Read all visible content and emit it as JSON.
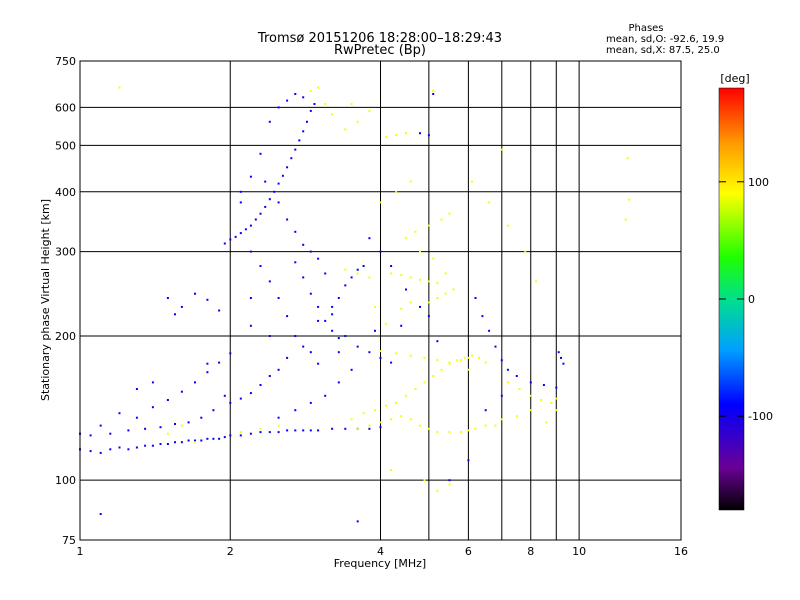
{
  "chart_data": {
    "type": "scatter",
    "title": "Tromsø 20151206 18:28:00–18:29:43",
    "subtitle": "RwPretec (Bp)",
    "xlabel": "Frequency [MHz]",
    "ylabel": "Stationary phase Virtual Height [km]",
    "x_scale": "log",
    "y_scale": "log",
    "xlim": [
      1,
      16
    ],
    "ylim": [
      75,
      750
    ],
    "x_ticks": [
      1,
      2,
      4,
      6,
      8,
      10,
      16
    ],
    "x_tick_labels": [
      "1",
      "2",
      "4",
      "6",
      "8",
      "10",
      "16"
    ],
    "x_minor_ticks": [
      5,
      7,
      9
    ],
    "y_ticks": [
      75,
      100,
      200,
      300,
      400,
      500,
      600,
      750
    ],
    "y_tick_labels": [
      "75",
      "100",
      "200",
      "300",
      "400",
      "500",
      "600",
      "750"
    ],
    "grid": true,
    "legend_title": "Phases",
    "legend_lines": [
      "mean, sd,O: -92.6, 19.9",
      "mean, sd,X:  87.5, 25.0"
    ],
    "legend_position": "top-right",
    "colorbar": {
      "label": "[deg]",
      "range": [
        -180,
        180
      ],
      "ticks": [
        -100,
        0,
        100
      ],
      "tick_labels": [
        "-100",
        "0",
        "100"
      ]
    },
    "series": [
      {
        "mode": "O",
        "color_value": -92.6,
        "points": [
          [
            1.0,
            116
          ],
          [
            1.05,
            115
          ],
          [
            1.1,
            114
          ],
          [
            1.15,
            116
          ],
          [
            1.2,
            117
          ],
          [
            1.25,
            116
          ],
          [
            1.3,
            117
          ],
          [
            1.35,
            118
          ],
          [
            1.4,
            118
          ],
          [
            1.45,
            119
          ],
          [
            1.5,
            119
          ],
          [
            1.55,
            120
          ],
          [
            1.6,
            120
          ],
          [
            1.65,
            121
          ],
          [
            1.7,
            121
          ],
          [
            1.75,
            121
          ],
          [
            1.8,
            122
          ],
          [
            1.85,
            122
          ],
          [
            1.9,
            122
          ],
          [
            1.95,
            123
          ],
          [
            2.0,
            124
          ],
          [
            2.1,
            124
          ],
          [
            2.2,
            125
          ],
          [
            2.3,
            126
          ],
          [
            2.4,
            126
          ],
          [
            2.5,
            126
          ],
          [
            2.6,
            127
          ],
          [
            2.7,
            127
          ],
          [
            2.8,
            127
          ],
          [
            2.9,
            127
          ],
          [
            3.0,
            127
          ],
          [
            3.2,
            128
          ],
          [
            3.4,
            128
          ],
          [
            3.6,
            128
          ],
          [
            3.8,
            128
          ],
          [
            4.0,
            129
          ],
          [
            1.05,
            124
          ],
          [
            1.15,
            125
          ],
          [
            1.25,
            127
          ],
          [
            1.35,
            128
          ],
          [
            1.45,
            129
          ],
          [
            1.55,
            131
          ],
          [
            1.65,
            132
          ],
          [
            1.75,
            135
          ],
          [
            1.85,
            140
          ],
          [
            1.95,
            150
          ],
          [
            1.4,
            142
          ],
          [
            1.5,
            147
          ],
          [
            1.6,
            153
          ],
          [
            1.7,
            160
          ],
          [
            1.8,
            168
          ],
          [
            1.9,
            176
          ],
          [
            2.0,
            184
          ],
          [
            1.3,
            135
          ],
          [
            1.0,
            125
          ],
          [
            1.1,
            130
          ],
          [
            1.2,
            138
          ],
          [
            1.6,
            230
          ],
          [
            1.5,
            240
          ],
          [
            1.7,
            245
          ],
          [
            1.8,
            238
          ],
          [
            1.9,
            226
          ],
          [
            1.55,
            222
          ],
          [
            1.95,
            312
          ],
          [
            2.0,
            318
          ],
          [
            2.05,
            322
          ],
          [
            2.1,
            328
          ],
          [
            2.15,
            334
          ],
          [
            2.2,
            340
          ],
          [
            2.25,
            350
          ],
          [
            2.3,
            360
          ],
          [
            2.35,
            372
          ],
          [
            2.4,
            386
          ],
          [
            2.45,
            400
          ],
          [
            2.5,
            416
          ],
          [
            2.55,
            432
          ],
          [
            2.6,
            450
          ],
          [
            2.65,
            470
          ],
          [
            2.7,
            490
          ],
          [
            2.75,
            512
          ],
          [
            2.8,
            535
          ],
          [
            2.85,
            560
          ],
          [
            2.9,
            590
          ],
          [
            2.95,
            610
          ],
          [
            2.6,
            620
          ],
          [
            2.7,
            640
          ],
          [
            2.8,
            630
          ],
          [
            2.5,
            600
          ],
          [
            2.4,
            560
          ],
          [
            2.3,
            480
          ],
          [
            2.2,
            430
          ],
          [
            2.1,
            380
          ],
          [
            2.35,
            420
          ],
          [
            2.5,
            380
          ],
          [
            2.6,
            350
          ],
          [
            2.7,
            330
          ],
          [
            2.8,
            310
          ],
          [
            2.9,
            300
          ],
          [
            3.0,
            290
          ],
          [
            3.1,
            270
          ],
          [
            2.7,
            285
          ],
          [
            2.8,
            265
          ],
          [
            2.9,
            245
          ],
          [
            3.0,
            230
          ],
          [
            3.1,
            215
          ],
          [
            3.2,
            205
          ],
          [
            3.3,
            198
          ],
          [
            2.5,
            240
          ],
          [
            2.4,
            260
          ],
          [
            2.3,
            280
          ],
          [
            2.2,
            300
          ],
          [
            2.6,
            220
          ],
          [
            2.7,
            200
          ],
          [
            2.8,
            190
          ],
          [
            2.9,
            185
          ],
          [
            3.0,
            175
          ],
          [
            2.5,
            170
          ],
          [
            2.4,
            165
          ],
          [
            2.3,
            158
          ],
          [
            2.2,
            152
          ],
          [
            2.1,
            148
          ],
          [
            2.0,
            145
          ],
          [
            3.4,
            255
          ],
          [
            3.5,
            265
          ],
          [
            3.6,
            275
          ],
          [
            3.7,
            280
          ],
          [
            3.3,
            240
          ],
          [
            3.2,
            230
          ],
          [
            3.4,
            200
          ],
          [
            3.6,
            190
          ],
          [
            3.8,
            185
          ],
          [
            4.0,
            180
          ],
          [
            4.2,
            176
          ],
          [
            3.5,
            170
          ],
          [
            3.3,
            160
          ],
          [
            3.1,
            150
          ],
          [
            2.9,
            145
          ],
          [
            2.7,
            140
          ],
          [
            2.5,
            135
          ],
          [
            3.0,
            215
          ],
          [
            3.2,
            222
          ],
          [
            4.0,
            300
          ],
          [
            3.8,
            320
          ],
          [
            4.2,
            280
          ],
          [
            4.5,
            250
          ],
          [
            4.8,
            230
          ],
          [
            5.0,
            220
          ],
          [
            2.2,
            210
          ],
          [
            2.4,
            200
          ],
          [
            6.2,
            240
          ],
          [
            6.4,
            220
          ],
          [
            6.6,
            205
          ],
          [
            6.8,
            190
          ],
          [
            7.0,
            178
          ],
          [
            7.2,
            170
          ],
          [
            7.5,
            165
          ],
          [
            8.0,
            160
          ],
          [
            8.5,
            158
          ],
          [
            9.0,
            156
          ],
          [
            9.2,
            180
          ],
          [
            9.3,
            175
          ],
          [
            9.1,
            185
          ],
          [
            4.8,
            530
          ],
          [
            5.0,
            525
          ],
          [
            5.1,
            640
          ],
          [
            1.1,
            85
          ],
          [
            3.6,
            82
          ],
          [
            5.5,
            100
          ],
          [
            6.0,
            110
          ],
          [
            6.5,
            140
          ],
          [
            7.0,
            150
          ],
          [
            2.1,
            400
          ],
          [
            2.2,
            240
          ],
          [
            1.4,
            160
          ],
          [
            1.3,
            155
          ],
          [
            1.8,
            175
          ],
          [
            2.6,
            180
          ],
          [
            3.3,
            185
          ],
          [
            3.9,
            205
          ],
          [
            4.4,
            210
          ],
          [
            5.2,
            195
          ]
        ]
      },
      {
        "mode": "X",
        "color_value": 87.5,
        "points": [
          [
            3.6,
            128
          ],
          [
            3.8,
            130
          ],
          [
            4.0,
            132
          ],
          [
            4.2,
            134
          ],
          [
            4.4,
            136
          ],
          [
            4.6,
            134
          ],
          [
            4.8,
            130
          ],
          [
            5.0,
            128
          ],
          [
            5.2,
            126
          ],
          [
            5.5,
            126
          ],
          [
            5.8,
            126
          ],
          [
            6.0,
            127
          ],
          [
            6.2,
            128
          ],
          [
            6.5,
            130
          ],
          [
            7.0,
            134
          ],
          [
            7.5,
            136
          ],
          [
            8.0,
            140
          ],
          [
            3.5,
            134
          ],
          [
            3.7,
            138
          ],
          [
            3.9,
            140
          ],
          [
            4.1,
            143
          ],
          [
            4.3,
            145
          ],
          [
            4.5,
            150
          ],
          [
            4.7,
            155
          ],
          [
            4.9,
            160
          ],
          [
            5.1,
            165
          ],
          [
            5.3,
            170
          ],
          [
            5.5,
            175
          ],
          [
            5.7,
            178
          ],
          [
            5.9,
            180
          ],
          [
            6.1,
            182
          ],
          [
            6.3,
            180
          ],
          [
            6.5,
            176
          ],
          [
            4.0,
            186
          ],
          [
            4.3,
            184
          ],
          [
            4.6,
            182
          ],
          [
            4.9,
            180
          ],
          [
            5.2,
            178
          ],
          [
            5.5,
            176
          ],
          [
            5.8,
            178
          ],
          [
            6.0,
            180
          ],
          [
            7.2,
            160
          ],
          [
            7.6,
            155
          ],
          [
            8.0,
            150
          ],
          [
            8.4,
            147
          ],
          [
            8.8,
            145
          ],
          [
            9.0,
            148
          ],
          [
            4.2,
            270
          ],
          [
            4.4,
            268
          ],
          [
            4.6,
            265
          ],
          [
            4.8,
            262
          ],
          [
            5.0,
            260
          ],
          [
            5.2,
            258
          ],
          [
            5.4,
            270
          ],
          [
            3.8,
            265
          ],
          [
            3.6,
            270
          ],
          [
            3.4,
            275
          ],
          [
            4.5,
            320
          ],
          [
            4.7,
            330
          ],
          [
            5.0,
            340
          ],
          [
            5.3,
            350
          ],
          [
            5.5,
            360
          ],
          [
            4.0,
            380
          ],
          [
            4.3,
            400
          ],
          [
            4.6,
            420
          ],
          [
            4.1,
            520
          ],
          [
            4.3,
            525
          ],
          [
            4.5,
            530
          ],
          [
            3.4,
            540
          ],
          [
            3.6,
            560
          ],
          [
            3.8,
            590
          ],
          [
            3.5,
            610
          ],
          [
            5.0,
            235
          ],
          [
            5.2,
            240
          ],
          [
            5.4,
            245
          ],
          [
            5.6,
            250
          ],
          [
            4.6,
            235
          ],
          [
            4.4,
            228
          ],
          [
            4.8,
            300
          ],
          [
            5.1,
            290
          ],
          [
            7.0,
            490
          ],
          [
            6.8,
            130
          ],
          [
            8.6,
            132
          ],
          [
            9.0,
            140
          ],
          [
            12.5,
            470
          ],
          [
            12.4,
            350
          ],
          [
            12.6,
            385
          ],
          [
            1.2,
            660
          ],
          [
            3.0,
            660
          ],
          [
            2.9,
            650
          ],
          [
            5.1,
            650
          ],
          [
            4.9,
            100
          ],
          [
            5.2,
            95
          ],
          [
            5.5,
            98
          ],
          [
            4.2,
            105
          ],
          [
            1.7,
            120
          ],
          [
            1.5,
            125
          ],
          [
            1.6,
            130
          ],
          [
            2.3,
            128
          ],
          [
            2.5,
            130
          ],
          [
            2.1,
            126
          ],
          [
            3.1,
            610
          ],
          [
            3.2,
            580
          ],
          [
            6.1,
            420
          ],
          [
            6.6,
            380
          ],
          [
            7.2,
            340
          ],
          [
            7.8,
            300
          ],
          [
            8.2,
            260
          ],
          [
            3.9,
            230
          ],
          [
            4.1,
            212
          ],
          [
            6.0,
            170
          ]
        ]
      }
    ]
  }
}
